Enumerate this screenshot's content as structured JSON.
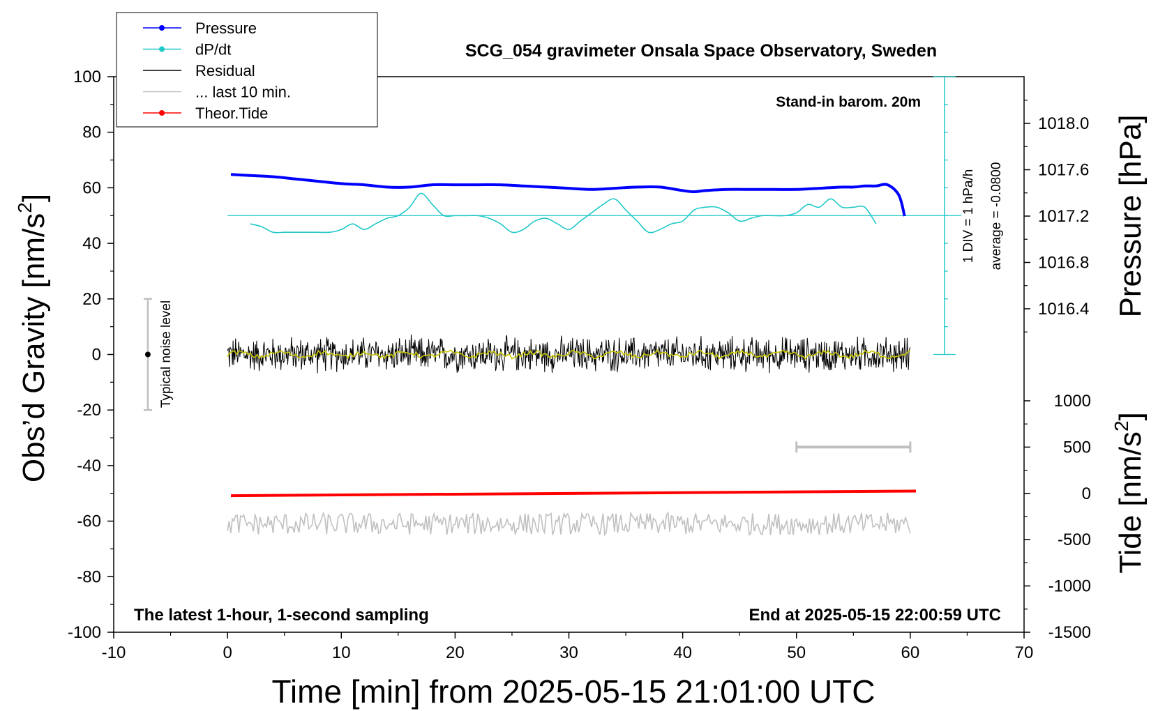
{
  "chart_data": {
    "type": "line",
    "title": "SCG_054 gravimeter Onsala Space Observatory, Sweden",
    "xlabel": "Time [min] from 2025-05-15 21:01:00 UTC",
    "ylabel_left": "Obs’d Gravity [nm/s",
    "ylabel_left_sup": "2",
    "ylabel_left_close": "]",
    "ylabel_right_pressure": "Pressure [hPa]",
    "ylabel_right_tide": "Tide [nm/s",
    "ylabel_right_tide_sup": "2",
    "ylabel_right_tide_close": "]",
    "xlim": [
      -10,
      70
    ],
    "ylim_left": [
      -100,
      100
    ],
    "pressure_axis_range": [
      1016.2,
      1018.4
    ],
    "tide_axis_range": [
      -1500,
      1500
    ],
    "xticks": [
      "-10",
      "0",
      "10",
      "20",
      "30",
      "40",
      "50",
      "60",
      "70"
    ],
    "xtick_values": [
      -10,
      0,
      10,
      20,
      30,
      40,
      50,
      60,
      70
    ],
    "yticks_left": [
      "100",
      "80",
      "60",
      "40",
      "20",
      "0",
      "-20",
      "-40",
      "-60",
      "-80",
      "-100"
    ],
    "ytick_left_values": [
      100,
      80,
      60,
      40,
      20,
      0,
      -20,
      -40,
      -60,
      -80,
      -100
    ],
    "pressure_ticks": [
      "1018.0",
      "1017.6",
      "1017.2",
      "1016.8",
      "1016.4"
    ],
    "pressure_tick_values": [
      1018.0,
      1017.6,
      1017.2,
      1016.8,
      1016.4
    ],
    "tide_ticks": [
      "1000",
      "500",
      "0",
      "-500",
      "-1000",
      "-1500"
    ],
    "tide_tick_values": [
      1000,
      500,
      0,
      -500,
      -1000,
      -1500
    ],
    "annotations": {
      "barometer_note": "Stand-in barom. 20m",
      "div_note": "1 DIV = 1 hPa/h",
      "average_note": "average = -0.0800",
      "noise_label": "Typical noise level",
      "bottom_left": "The latest 1-hour, 1-second sampling",
      "bottom_right": "End at 2025-05-15 22:00:59 UTC"
    },
    "legend": {
      "placement": "top-left",
      "entries": [
        {
          "label": "Pressure",
          "color": "#0000ff",
          "marker": "dot"
        },
        {
          "label": "dP/dt",
          "color": "#20c8c8",
          "marker": "dot"
        },
        {
          "label": "Residual",
          "color": "#000000",
          "marker": "none"
        },
        {
          "label": "... last 10 min.",
          "color": "#c0c0c0",
          "marker": "none"
        },
        {
          "label": "Theor.Tide",
          "color": "#ff0000",
          "marker": "dot"
        }
      ]
    },
    "noise_bar": {
      "x": -7,
      "ylow": -20,
      "yhigh": 20,
      "center": 0
    },
    "last10_bar": {
      "xstart": 50,
      "xend": 60,
      "tide_level": 500
    },
    "dpdt_baseline_gravity": 50,
    "dpdt_div_ticks": {
      "x": 63,
      "ytop": 100,
      "ybottom": 0,
      "spacing": 10
    },
    "series": [
      {
        "name": "Pressure",
        "color": "#0000ff",
        "x": [
          0.3,
          2,
          4,
          6,
          8,
          10,
          12,
          14,
          16,
          18,
          20,
          22,
          24,
          26,
          28,
          30,
          32,
          34,
          36,
          38,
          40,
          41,
          42,
          44,
          46,
          48,
          50,
          52,
          54,
          55,
          56,
          57,
          58,
          59,
          59.5
        ],
        "y_pressure": [
          1017.56,
          1017.55,
          1017.54,
          1017.52,
          1017.5,
          1017.48,
          1017.47,
          1017.45,
          1017.45,
          1017.47,
          1017.47,
          1017.47,
          1017.47,
          1017.46,
          1017.45,
          1017.44,
          1017.43,
          1017.44,
          1017.45,
          1017.45,
          1017.42,
          1017.41,
          1017.42,
          1017.43,
          1017.43,
          1017.43,
          1017.43,
          1017.44,
          1017.45,
          1017.45,
          1017.46,
          1017.46,
          1017.47,
          1017.38,
          1017.2
        ]
      },
      {
        "name": "dP/dt",
        "color": "#20c8c8",
        "x": [
          2,
          3,
          4,
          5,
          6,
          7,
          8,
          9,
          10,
          11,
          12,
          13,
          14,
          15,
          16,
          17,
          18,
          19,
          20,
          21,
          22,
          23,
          24,
          25,
          26,
          27,
          28,
          29,
          30,
          31,
          32,
          33,
          34,
          35,
          36,
          37,
          38,
          39,
          40,
          41,
          42,
          43,
          44,
          45,
          46,
          47,
          48,
          49,
          50,
          51,
          52,
          53,
          54,
          55,
          56,
          57
        ],
        "y_gravity": [
          47,
          46,
          44,
          44,
          44,
          44,
          44,
          44,
          45,
          47,
          45,
          47,
          49,
          50,
          53,
          58,
          54,
          50,
          50,
          50,
          50,
          49,
          47,
          44,
          45,
          48,
          49,
          47,
          45,
          48,
          51,
          54,
          56,
          52,
          48,
          44,
          45,
          47,
          48,
          52,
          53,
          53,
          51,
          48,
          49,
          50,
          50,
          50,
          51,
          54,
          53,
          56,
          53,
          53,
          53,
          47
        ]
      },
      {
        "name": "Residual",
        "color": "#000000",
        "x_range": [
          0,
          60
        ],
        "y_center": 0,
        "y_amplitude": 5
      },
      {
        "name": "Residual (smoothed)",
        "color": "#c8c800",
        "x_range": [
          0,
          60
        ],
        "y_center": 0
      },
      {
        "name": "... last 10 min.",
        "color": "#c0c0c0",
        "x_range": [
          0,
          60
        ],
        "y_center": -61,
        "y_amplitude": 4
      },
      {
        "name": "Theor.Tide",
        "color": "#ff0000",
        "x": [
          0.3,
          60.5
        ],
        "y_tide": [
          -25,
          25
        ]
      }
    ]
  }
}
